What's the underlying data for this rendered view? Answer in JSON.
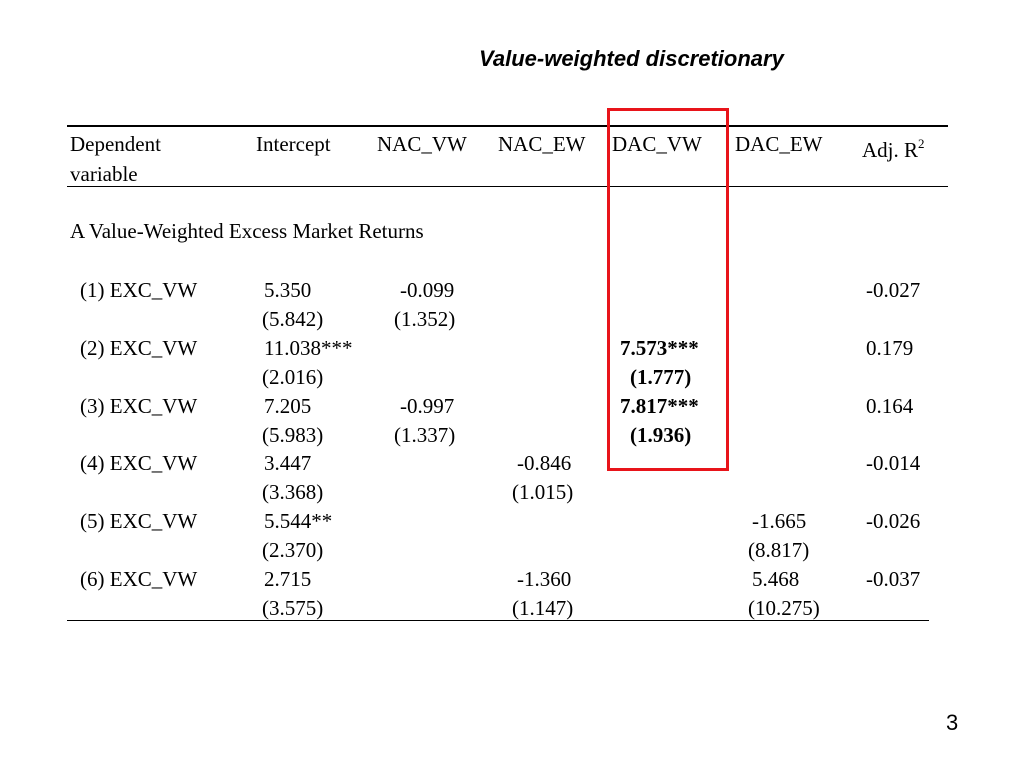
{
  "slide": {
    "title": "Value-weighted discretionary",
    "page_number": "3",
    "highlight_color": "#e8141a"
  },
  "table": {
    "headers": {
      "dependent_line1": "Dependent",
      "dependent_line2": "variable",
      "intercept": "Intercept",
      "nac_vw": "NAC_VW",
      "nac_ew": "NAC_EW",
      "dac_vw": "DAC_VW",
      "dac_ew": "DAC_EW",
      "adj_r": "Adj. R",
      "adj_r_sup": "2"
    },
    "section_label": "A Value-Weighted Excess Market Returns",
    "rows": [
      {
        "label": "(1) EXC_VW",
        "intercept": "5.350",
        "intercept_se": "(5.842)",
        "nac_vw": "-0.099",
        "nac_vw_se": "(1.352)",
        "nac_ew": "",
        "nac_ew_se": "",
        "dac_vw": "",
        "dac_vw_se": "",
        "dac_ew": "",
        "dac_ew_se": "",
        "adj_r2": "-0.027"
      },
      {
        "label": "(2) EXC_VW",
        "intercept": "11.038***",
        "intercept_se": "(2.016)",
        "nac_vw": "",
        "nac_vw_se": "",
        "nac_ew": "",
        "nac_ew_se": "",
        "dac_vw": "7.573***",
        "dac_vw_se": "(1.777)",
        "dac_ew": "",
        "dac_ew_se": "",
        "adj_r2": "0.179"
      },
      {
        "label": "(3) EXC_VW",
        "intercept": "7.205",
        "intercept_se": "(5.983)",
        "nac_vw": "-0.997",
        "nac_vw_se": "(1.337)",
        "nac_ew": "",
        "nac_ew_se": "",
        "dac_vw": "7.817***",
        "dac_vw_se": "(1.936)",
        "dac_ew": "",
        "dac_ew_se": "",
        "adj_r2": "0.164"
      },
      {
        "label": "(4) EXC_VW",
        "intercept": "3.447",
        "intercept_se": "(3.368)",
        "nac_vw": "",
        "nac_vw_se": "",
        "nac_ew": "-0.846",
        "nac_ew_se": "(1.015)",
        "dac_vw": "",
        "dac_vw_se": "",
        "dac_ew": "",
        "dac_ew_se": "",
        "adj_r2": "-0.014"
      },
      {
        "label": "(5) EXC_VW",
        "intercept": "5.544**",
        "intercept_se": "(2.370)",
        "nac_vw": "",
        "nac_vw_se": "",
        "nac_ew": "",
        "nac_ew_se": "",
        "dac_vw": "",
        "dac_vw_se": "",
        "dac_ew": "-1.665",
        "dac_ew_se": "(8.817)",
        "adj_r2": "-0.026"
      },
      {
        "label": "(6) EXC_VW",
        "intercept": "2.715",
        "intercept_se": "(3.575)",
        "nac_vw": "",
        "nac_vw_se": "",
        "nac_ew": "-1.360",
        "nac_ew_se": "(1.147)",
        "dac_vw": "",
        "dac_vw_se": "",
        "dac_ew": "5.468",
        "dac_ew_se": "(10.275)",
        "adj_r2": "-0.037"
      }
    ]
  }
}
